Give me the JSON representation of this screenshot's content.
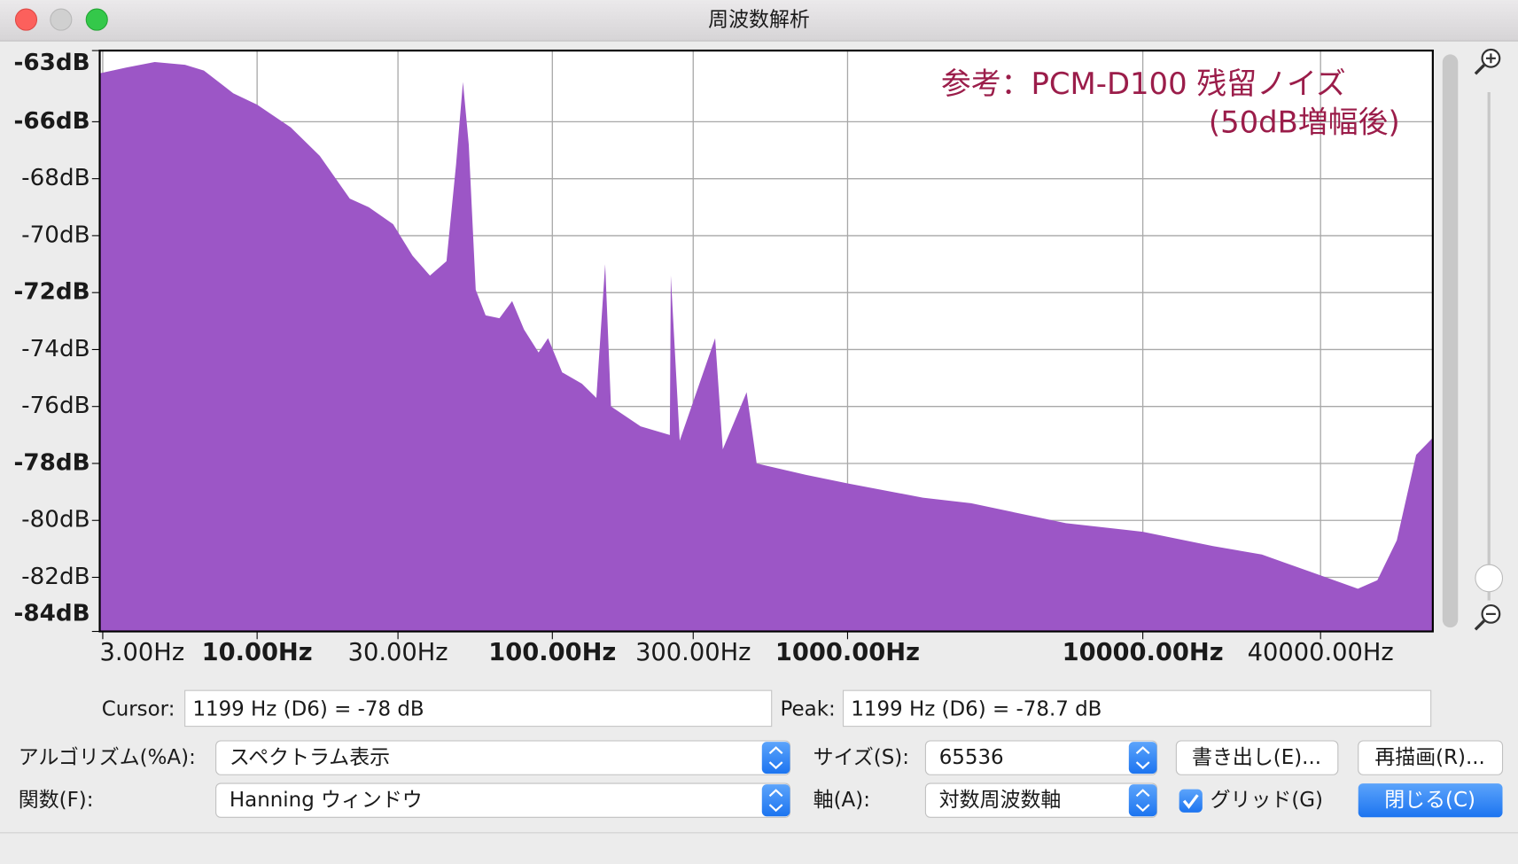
{
  "window": {
    "title": "周波数解析"
  },
  "chart_data": {
    "type": "area",
    "x_scale": "log",
    "grid": true,
    "color": "#9c56c6",
    "annotations": [
      "参考：PCM-D100 残留ノイズ",
      "(50dB増幅後)"
    ],
    "annotation_color": "#9b1d4a",
    "xlim": [
      2.93,
      96000
    ],
    "ylim": [
      -83.9,
      -63.5
    ],
    "xticks": [
      {
        "value": 3,
        "label": "3.00Hz"
      },
      {
        "value": 10,
        "label": "10.00Hz"
      },
      {
        "value": 30,
        "label": "30.00Hz"
      },
      {
        "value": 100,
        "label": "100.00Hz"
      },
      {
        "value": 300,
        "label": "300.00Hz"
      },
      {
        "value": 1000,
        "label": "1000.00Hz"
      },
      {
        "value": 10000,
        "label": "10000.00Hz"
      },
      {
        "value": 40000,
        "label": "40000.00Hz"
      }
    ],
    "yticks": [
      {
        "value": -63.5,
        "label": "-63dB"
      },
      {
        "value": -66,
        "label": "-66dB"
      },
      {
        "value": -68,
        "label": "-68dB"
      },
      {
        "value": -70,
        "label": "-70dB"
      },
      {
        "value": -72,
        "label": "-72dB"
      },
      {
        "value": -74,
        "label": "-74dB"
      },
      {
        "value": -76,
        "label": "-76dB"
      },
      {
        "value": -78,
        "label": "-78dB"
      },
      {
        "value": -80,
        "label": "-80dB"
      },
      {
        "value": -82,
        "label": "-82dB"
      },
      {
        "value": -83.9,
        "label": "-84dB"
      }
    ],
    "x": [
      2.93,
      3.6,
      4.5,
      5.7,
      6.6,
      8.3,
      10,
      13,
      16.3,
      20.6,
      23.9,
      28.9,
      33.6,
      38.5,
      43.8,
      47.2,
      49.8,
      52.1,
      55,
      59.4,
      66.2,
      73.1,
      80.2,
      89.8,
      96.7,
      108,
      126,
      141,
      151,
      158,
      199,
      250,
      252,
      270,
      356,
      378,
      455,
      492,
      720,
      1000,
      1800,
      2620,
      5490,
      10000,
      17300,
      25300,
      36800,
      53500,
      62300,
      72500,
      84300,
      96000
    ],
    "values": [
      -64.3,
      -64.1,
      -63.9,
      -64.0,
      -64.2,
      -65.0,
      -65.4,
      -66.2,
      -67.2,
      -68.7,
      -69.0,
      -69.6,
      -70.7,
      -71.4,
      -70.9,
      -67.5,
      -64.6,
      -66.8,
      -71.9,
      -72.8,
      -72.9,
      -72.3,
      -73.3,
      -74.1,
      -73.6,
      -74.8,
      -75.2,
      -75.7,
      -71.0,
      -76.0,
      -76.7,
      -77.0,
      -71.4,
      -77.2,
      -73.6,
      -77.5,
      -75.5,
      -78.0,
      -78.4,
      -78.7,
      -79.2,
      -79.4,
      -80.1,
      -80.4,
      -80.9,
      -81.2,
      -81.8,
      -82.4,
      -82.1,
      -80.7,
      -77.7,
      -77.1
    ]
  },
  "readouts": {
    "cursor_label": "Cursor:",
    "cursor_value": "1199 Hz (D6) = -78 dB",
    "peak_label": "Peak:",
    "peak_value": "1199 Hz (D6) = -78.7 dB"
  },
  "controls": {
    "algorithm_label": "アルゴリズム(%A):",
    "algorithm_value": "スペクトラム表示",
    "size_label": "サイズ(S):",
    "size_value": "65536",
    "export_button": "書き出し(E)...",
    "replot_button": "再描画(R)...",
    "function_label": "関数(F):",
    "function_value": "Hanning ウィンドウ",
    "axis_label": "軸(A):",
    "axis_value": "対数周波数軸",
    "grid_checkbox": "グリッド(G)",
    "close_button": "閉じる(C)"
  }
}
